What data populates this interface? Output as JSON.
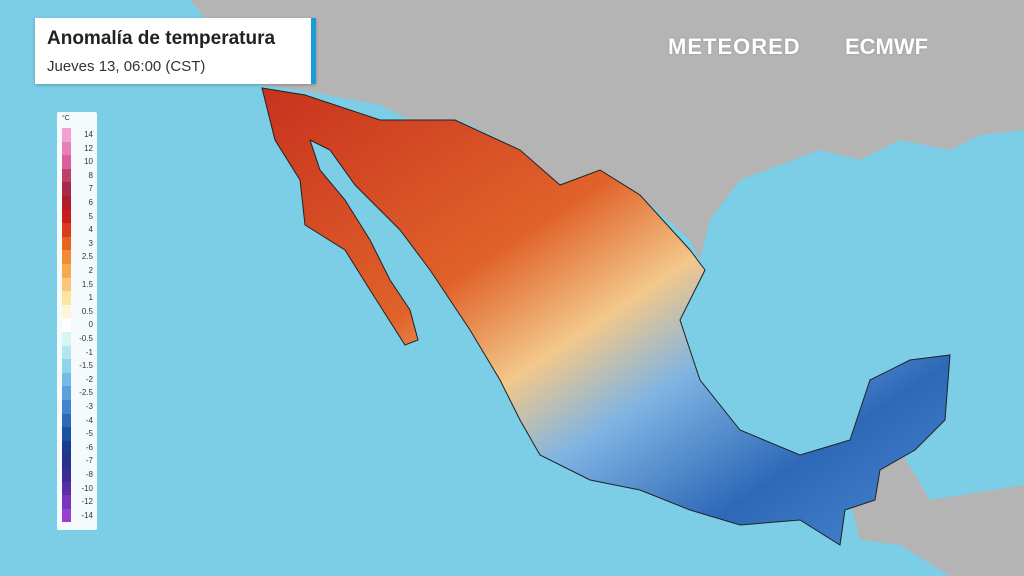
{
  "header": {
    "title": "Anomalía de temperatura",
    "subtitle": "Jueves 13, 06:00 (CST)"
  },
  "logos": [
    "METEORED",
    "ECMWF"
  ],
  "legend": {
    "unit": "°C",
    "items": [
      {
        "label": "14",
        "color": "#f5a0d0"
      },
      {
        "label": "12",
        "color": "#e87fb8"
      },
      {
        "label": "10",
        "color": "#d9609a"
      },
      {
        "label": "8",
        "color": "#c0406a"
      },
      {
        "label": "7",
        "color": "#a82a48"
      },
      {
        "label": "6",
        "color": "#b01c28"
      },
      {
        "label": "5",
        "color": "#c81e1e"
      },
      {
        "label": "4",
        "color": "#dc3a1a"
      },
      {
        "label": "3",
        "color": "#e8641e"
      },
      {
        "label": "2.5",
        "color": "#f08c32"
      },
      {
        "label": "2",
        "color": "#f5aa50"
      },
      {
        "label": "1.5",
        "color": "#f8c878"
      },
      {
        "label": "1",
        "color": "#fae6a0"
      },
      {
        "label": "0.5",
        "color": "#fdf6d8"
      },
      {
        "label": "0",
        "color": "#ffffff"
      },
      {
        "label": "-0.5",
        "color": "#d8f4f4"
      },
      {
        "label": "-1",
        "color": "#b0e8ee"
      },
      {
        "label": "-1.5",
        "color": "#90d4ec"
      },
      {
        "label": "-2",
        "color": "#74bce6"
      },
      {
        "label": "-2.5",
        "color": "#5aa0dc"
      },
      {
        "label": "-3",
        "color": "#4484cc"
      },
      {
        "label": "-4",
        "color": "#2e68b8"
      },
      {
        "label": "-5",
        "color": "#1e50a0"
      },
      {
        "label": "-6",
        "color": "#1a3c8c"
      },
      {
        "label": "-7",
        "color": "#28308a"
      },
      {
        "label": "-8",
        "color": "#3c2c96"
      },
      {
        "label": "-10",
        "color": "#5a2ca8"
      },
      {
        "label": "-12",
        "color": "#7a34bc"
      },
      {
        "label": "-14",
        "color": "#9a40d0"
      }
    ]
  }
}
